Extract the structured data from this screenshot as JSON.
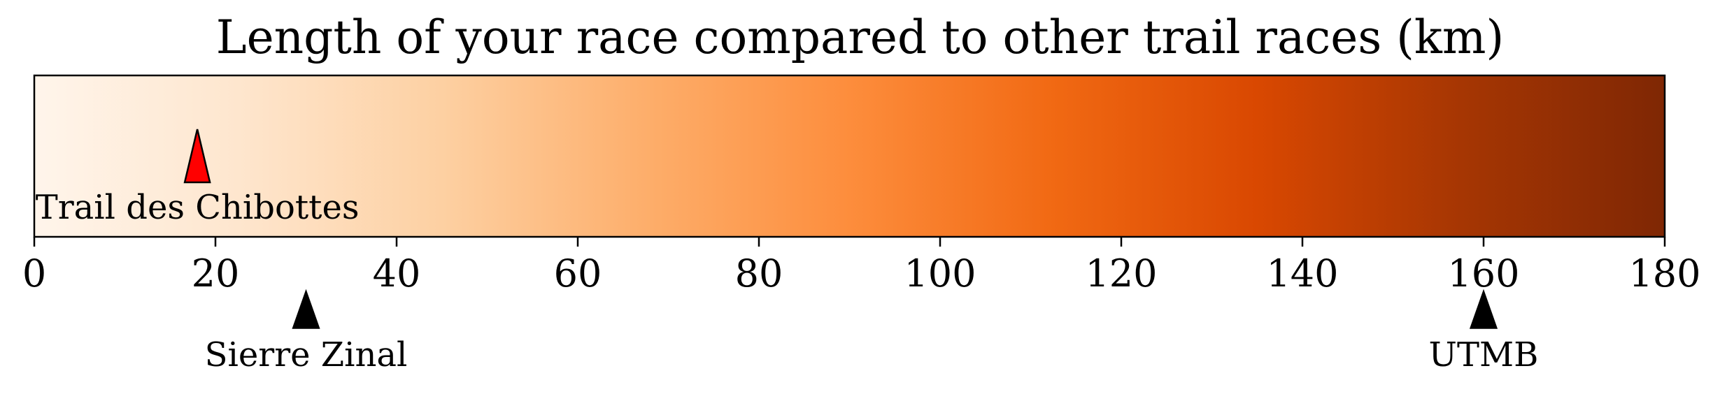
{
  "chart_data": {
    "type": "colorbar",
    "title": "Length of your race compared to other trail races (km)",
    "colormap": "Oranges",
    "colorbar_stops": [
      "#fff5eb",
      "#fee6ce",
      "#fdd0a2",
      "#fdae6b",
      "#fd8d3c",
      "#f16913",
      "#d94801",
      "#a63603",
      "#7f2704"
    ],
    "xlim": [
      0,
      180
    ],
    "ticks": [
      0,
      20,
      40,
      60,
      80,
      100,
      120,
      140,
      160,
      180
    ],
    "tick_labels": [
      "0",
      "20",
      "40",
      "60",
      "80",
      "100",
      "120",
      "140",
      "160",
      "180"
    ],
    "your_race": {
      "name": "Trail des Chibottes",
      "value": 18,
      "marker_color": "#ff0000"
    },
    "reference_races": [
      {
        "name": "Sierre Zinal",
        "value": 30,
        "marker_color": "#000000"
      },
      {
        "name": "UTMB",
        "value": 160,
        "marker_color": "#000000"
      }
    ]
  }
}
